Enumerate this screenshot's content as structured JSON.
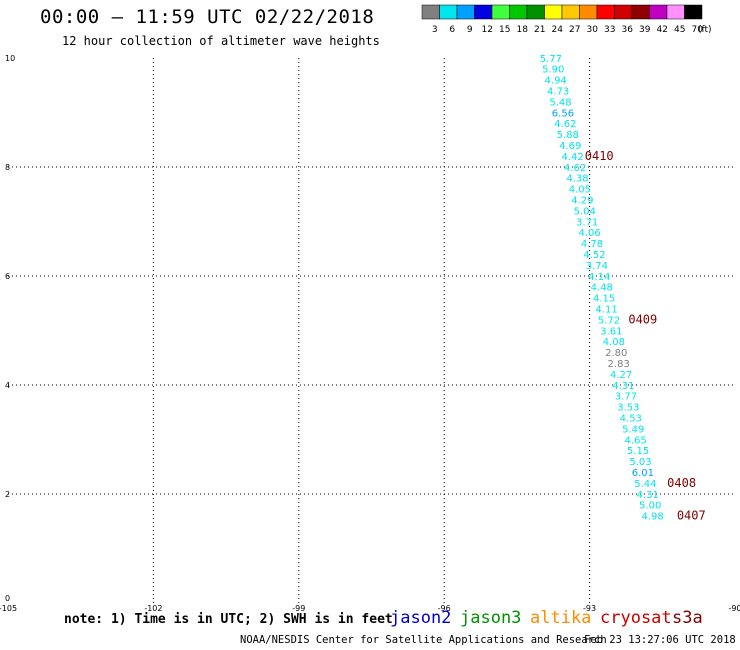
{
  "header": {
    "title": "00:00 – 11:59 UTC 02/22/2018",
    "subtitle": "12 hour collection of altimeter wave heights"
  },
  "legend": {
    "unit": "(ft)",
    "bins": [
      {
        "label": "3",
        "color": "#808080"
      },
      {
        "label": "6",
        "color": "#00e5ee"
      },
      {
        "label": "9",
        "color": "#00a0ff"
      },
      {
        "label": "12",
        "color": "#0000e0"
      },
      {
        "label": "15",
        "color": "#40ff40"
      },
      {
        "label": "18",
        "color": "#00c800"
      },
      {
        "label": "21",
        "color": "#009000"
      },
      {
        "label": "24",
        "color": "#ffff00"
      },
      {
        "label": "27",
        "color": "#ffc800"
      },
      {
        "label": "30",
        "color": "#ff8c00"
      },
      {
        "label": "33",
        "color": "#ff0000"
      },
      {
        "label": "36",
        "color": "#d00000"
      },
      {
        "label": "39",
        "color": "#900000"
      },
      {
        "label": "42",
        "color": "#c000c0"
      },
      {
        "label": "45",
        "color": "#ff90ff"
      },
      {
        "label": "70",
        "color": "#000000"
      }
    ]
  },
  "chart_data": {
    "type": "scatter",
    "xlim": [
      -105,
      -90
    ],
    "ylim": [
      0,
      10
    ],
    "xticks": [
      "-105",
      "-102",
      "-99",
      "-96",
      "-93",
      "-90"
    ],
    "yticks": [
      "0",
      "2",
      "4",
      "6",
      "8",
      "10"
    ],
    "grid": true,
    "points": [
      {
        "lon": -93.8,
        "lat": 9.93,
        "label": "5.77"
      },
      {
        "lon": -93.75,
        "lat": 9.73,
        "label": "5.90"
      },
      {
        "lon": -93.7,
        "lat": 9.53,
        "label": "4.94"
      },
      {
        "lon": -93.65,
        "lat": 9.33,
        "label": "4.73"
      },
      {
        "lon": -93.6,
        "lat": 9.13,
        "label": "5.48"
      },
      {
        "lon": -93.55,
        "lat": 8.93,
        "label": "6.56"
      },
      {
        "lon": -93.5,
        "lat": 8.73,
        "label": "4.62"
      },
      {
        "lon": -93.45,
        "lat": 8.53,
        "label": "5.88"
      },
      {
        "lon": -93.4,
        "lat": 8.33,
        "label": "4.69"
      },
      {
        "lon": -93.35,
        "lat": 8.13,
        "label": "4.42"
      },
      {
        "lon": -93.3,
        "lat": 7.93,
        "label": "4.62"
      },
      {
        "lon": -93.25,
        "lat": 7.73,
        "label": "4.38"
      },
      {
        "lon": -93.2,
        "lat": 7.53,
        "label": "4.05"
      },
      {
        "lon": -93.15,
        "lat": 7.33,
        "label": "4.29"
      },
      {
        "lon": -93.1,
        "lat": 7.13,
        "label": "5.04"
      },
      {
        "lon": -93.05,
        "lat": 6.93,
        "label": "3.71"
      },
      {
        "lon": -93.0,
        "lat": 6.73,
        "label": "4.06"
      },
      {
        "lon": -92.95,
        "lat": 6.53,
        "label": "4.78"
      },
      {
        "lon": -92.9,
        "lat": 6.33,
        "label": "4.52"
      },
      {
        "lon": -92.85,
        "lat": 6.13,
        "label": "3.74"
      },
      {
        "lon": -92.8,
        "lat": 5.93,
        "label": "4.14"
      },
      {
        "lon": -92.75,
        "lat": 5.73,
        "label": "4.48"
      },
      {
        "lon": -92.7,
        "lat": 5.53,
        "label": "4.15"
      },
      {
        "lon": -92.65,
        "lat": 5.33,
        "label": "4.11"
      },
      {
        "lon": -92.6,
        "lat": 5.13,
        "label": "5.72"
      },
      {
        "lon": -92.55,
        "lat": 4.93,
        "label": "3.61"
      },
      {
        "lon": -92.5,
        "lat": 4.73,
        "label": "4.08"
      },
      {
        "lon": -92.45,
        "lat": 4.53,
        "label": "2.80"
      },
      {
        "lon": -92.4,
        "lat": 4.33,
        "label": "2.83"
      },
      {
        "lon": -92.35,
        "lat": 4.13,
        "label": "4.27"
      },
      {
        "lon": -92.3,
        "lat": 3.93,
        "label": "4.31"
      },
      {
        "lon": -92.25,
        "lat": 3.73,
        "label": "3.77"
      },
      {
        "lon": -92.2,
        "lat": 3.53,
        "label": "3.53"
      },
      {
        "lon": -92.15,
        "lat": 3.33,
        "label": "4.53"
      },
      {
        "lon": -92.1,
        "lat": 3.13,
        "label": "5.49"
      },
      {
        "lon": -92.05,
        "lat": 2.93,
        "label": "4.65"
      },
      {
        "lon": -92.0,
        "lat": 2.73,
        "label": "5.15"
      },
      {
        "lon": -91.95,
        "lat": 2.53,
        "label": "5.03"
      },
      {
        "lon": -91.9,
        "lat": 2.33,
        "label": "6.01"
      },
      {
        "lon": -91.85,
        "lat": 2.13,
        "label": "5.44"
      },
      {
        "lon": -91.8,
        "lat": 1.93,
        "label": "4.31"
      },
      {
        "lon": -91.75,
        "lat": 1.73,
        "label": "5.00"
      },
      {
        "lon": -91.7,
        "lat": 1.53,
        "label": "4.98"
      }
    ],
    "time_labels": [
      {
        "lon": -93.1,
        "lat": 8.13,
        "label": "0410",
        "color": "#800000"
      },
      {
        "lon": -92.2,
        "lat": 5.13,
        "label": "0409",
        "color": "#800000"
      },
      {
        "lon": -91.4,
        "lat": 2.13,
        "label": "0408",
        "color": "#800000"
      },
      {
        "lon": -91.2,
        "lat": 1.53,
        "label": "0407",
        "color": "#800000"
      }
    ]
  },
  "footer": {
    "note": "note: 1) Time is in UTC; 2) SWH is in feet",
    "satellites": [
      {
        "name": "jason2",
        "color": "#0000cc"
      },
      {
        "name": "jason3",
        "color": "#009000"
      },
      {
        "name": "altika",
        "color": "#ff8c00"
      },
      {
        "name": "cryosat",
        "color": "#cc0000"
      },
      {
        "name": "s3a",
        "color": "#800000"
      }
    ],
    "credit": "NOAA/NESDIS Center for Satellite Applications and Research",
    "timestamp": "Feb 23 13:27:06 UTC 2018"
  }
}
